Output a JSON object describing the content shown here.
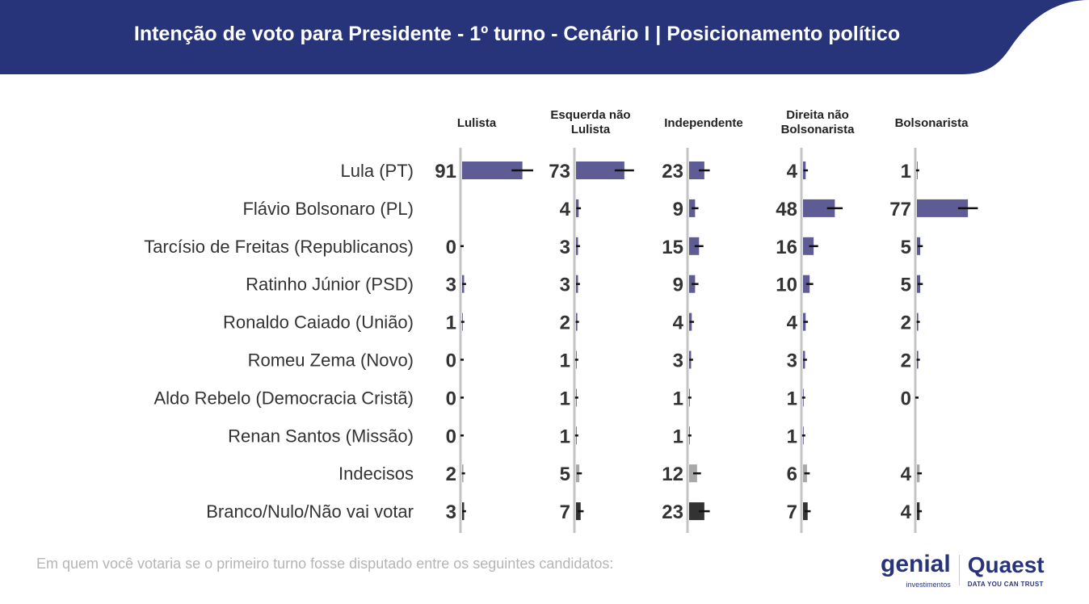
{
  "header": {
    "title": "Intenção de voto para Presidente - 1º turno - Cenário I | Posicionamento político"
  },
  "footnote": "Em quem você votaria se o primeiro turno fosse disputado entre os seguintes candidatos:",
  "logos": {
    "genial": "genial",
    "genial_sub": "investimentos",
    "quaest": "Quaest",
    "quaest_sub": "DATA YOU CAN TRUST"
  },
  "colors": {
    "banner": "#283479",
    "bar": "#5f5b94",
    "undecided": "#a8a8a8",
    "blank": "#333333",
    "axis": "#c4c4c4"
  },
  "chart_data": {
    "type": "bar",
    "title": "Intenção de voto para Presidente - 1º turno - Cenário I | Posicionamento político",
    "columns": [
      "Lulista",
      "Esquerda não Lulista",
      "Independente",
      "Direita não Bolsonarista",
      "Bolsonarista"
    ],
    "categories": [
      "Lula (PT)",
      "Flávio Bolsonaro (PL)",
      "Tarcísio de Freitas (Republicanos)",
      "Ratinho Júnior (PSD)",
      "Ronaldo Caiado (União)",
      "Romeu Zema (Novo)",
      "Aldo Rebelo (Democracia Cristã)",
      "Renan Santos (Missão)",
      "Indecisos",
      "Branco/Nulo/Não vai votar"
    ],
    "series": [
      {
        "name": "Lulista",
        "values": [
          91,
          null,
          0,
          3,
          1,
          0,
          0,
          0,
          2,
          3
        ]
      },
      {
        "name": "Esquerda não Lulista",
        "values": [
          73,
          4,
          3,
          3,
          2,
          1,
          1,
          1,
          5,
          7
        ]
      },
      {
        "name": "Independente",
        "values": [
          23,
          9,
          15,
          9,
          4,
          3,
          1,
          1,
          12,
          23
        ]
      },
      {
        "name": "Direita não Bolsonarista",
        "values": [
          4,
          48,
          16,
          10,
          4,
          3,
          1,
          1,
          6,
          7
        ]
      },
      {
        "name": "Bolsonarista",
        "values": [
          1,
          77,
          5,
          5,
          2,
          2,
          0,
          null,
          4,
          4
        ]
      }
    ],
    "unit": "%"
  }
}
